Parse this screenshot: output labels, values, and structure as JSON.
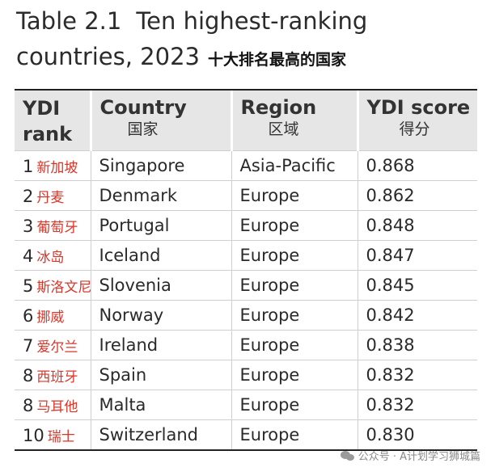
{
  "title": {
    "prefix": "Table 2.1",
    "line1": "Ten highest-ranking",
    "line2": "countries, 2023",
    "cn": "十大排名最高的国家"
  },
  "headers": [
    {
      "en": "YDI rank",
      "cn": ""
    },
    {
      "en": "Country",
      "cn": "国家"
    },
    {
      "en": "Region",
      "cn": "区域"
    },
    {
      "en": "YDI score",
      "cn": "得分"
    }
  ],
  "rows": [
    {
      "rank": "1",
      "cn": "新加坡",
      "country": "Singapore",
      "region": "Asia-Pacific",
      "score": "0.868"
    },
    {
      "rank": "2",
      "cn": "丹麦",
      "country": "Denmark",
      "region": "Europe",
      "score": "0.862"
    },
    {
      "rank": "3",
      "cn": "葡萄牙",
      "country": "Portugal",
      "region": "Europe",
      "score": "0.848"
    },
    {
      "rank": "4",
      "cn": "冰岛",
      "country": "Iceland",
      "region": "Europe",
      "score": "0.847"
    },
    {
      "rank": "5",
      "cn": "斯洛文尼",
      "country": "Slovenia",
      "region": "Europe",
      "score": "0.845"
    },
    {
      "rank": "6",
      "cn": "挪威",
      "country": "Norway",
      "region": "Europe",
      "score": "0.842"
    },
    {
      "rank": "7",
      "cn": "爱尔兰",
      "country": "Ireland",
      "region": "Europe",
      "score": "0.838"
    },
    {
      "rank": "8",
      "cn": "西班牙",
      "country": "Spain",
      "region": "Europe",
      "score": "0.832"
    },
    {
      "rank": "8",
      "cn": "马耳他",
      "country": "Malta",
      "region": "Europe",
      "score": "0.832"
    },
    {
      "rank": "10",
      "cn": "瑞士",
      "country": "Switzerland",
      "region": "Europe",
      "score": "0.830"
    }
  ],
  "watermark": "公众号 · A计划学习狮城篇",
  "colors": {
    "header_bg": "#e6e6e6",
    "cn_rank": "#d9362a",
    "text": "#2a2a2a"
  }
}
